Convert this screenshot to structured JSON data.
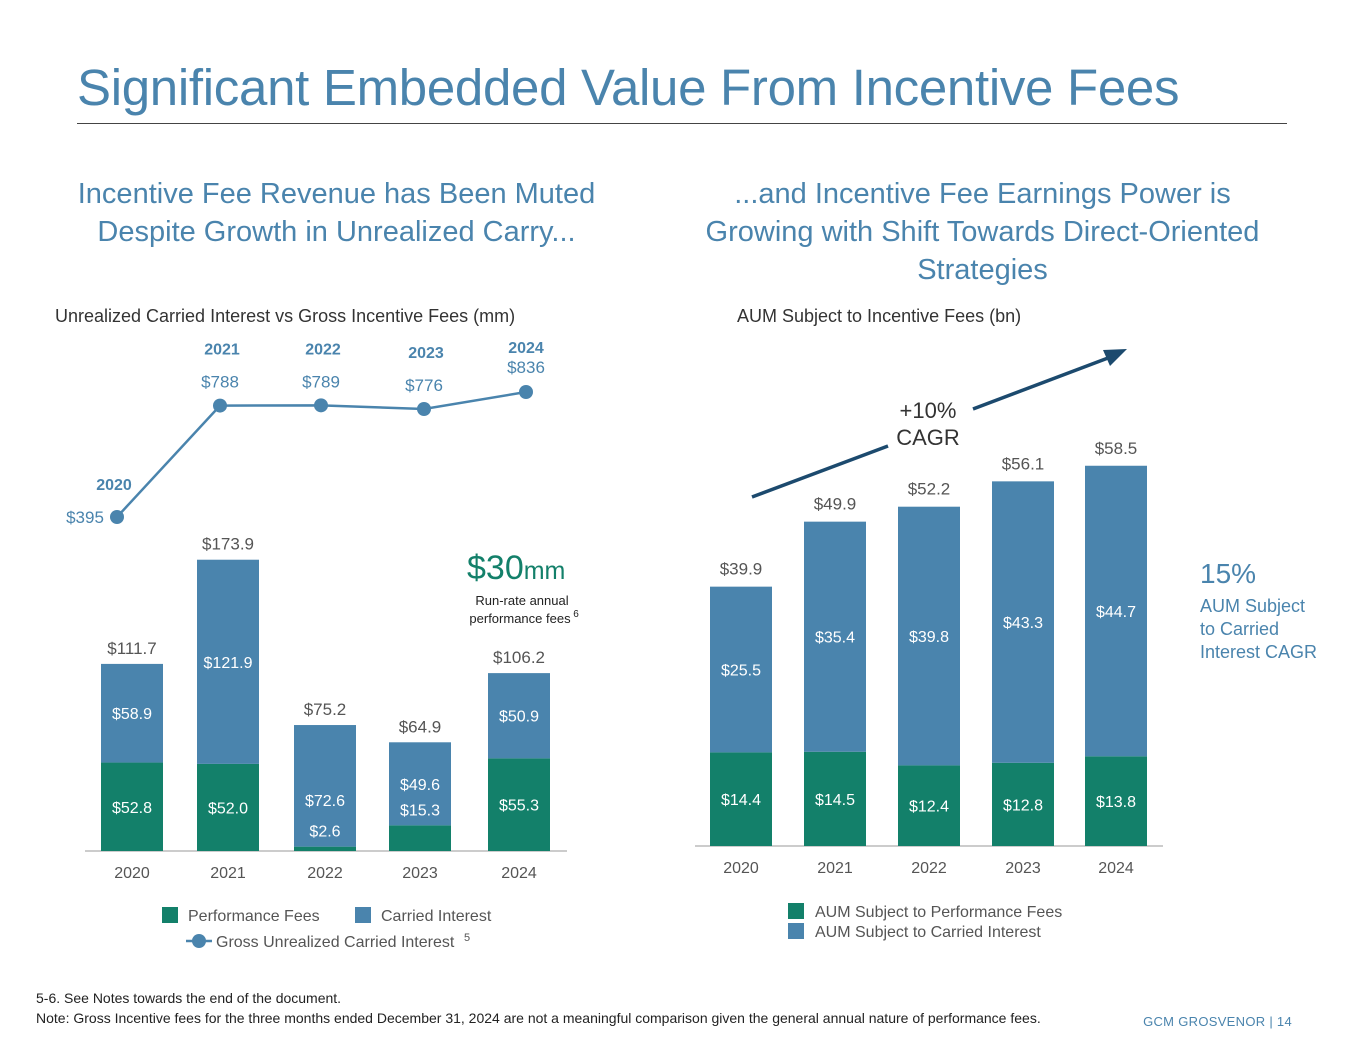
{
  "page": {
    "title": "Significant Embedded Value From Incentive Fees",
    "left_subhead": "Incentive Fee Revenue has Been Muted Despite Growth in Unrealized Carry...",
    "right_subhead": "...and Incentive Fee Earnings Power is Growing with Shift Towards Direct-Oriented Strategies",
    "note1": "5-6. See Notes towards the end of the document.",
    "note2": "Note: Gross Incentive fees for the three months ended December 31, 2024 are not a meaningful comparison given the general annual nature of performance fees.",
    "footer": "GCM GROSVENOR | 14"
  },
  "colors": {
    "green": "#13806a",
    "blue": "#4a84ad",
    "dark_blue": "#1c4a6e",
    "title_blue": "#4a84ad",
    "text": "#555555"
  },
  "chart_data": [
    {
      "id": "left",
      "type": "bar",
      "stacked": true,
      "title": "Unrealized Carried Interest vs Gross Incentive Fees (mm)",
      "categories": [
        "2020",
        "2021",
        "2022",
        "2023",
        "2024"
      ],
      "series": [
        {
          "name": "Performance Fees",
          "values": [
            52.8,
            52.0,
            2.6,
            15.3,
            55.3
          ],
          "labels": [
            "$52.8",
            "$52.0",
            "$2.6",
            "$15.3",
            "$55.3"
          ]
        },
        {
          "name": "Carried Interest",
          "values": [
            58.9,
            121.9,
            72.6,
            49.6,
            50.9
          ],
          "labels": [
            "$58.9",
            "$121.9",
            "$72.6",
            "$49.6",
            "$50.9"
          ]
        }
      ],
      "totals": [
        "$111.7",
        "$173.9",
        "$75.2",
        "$64.9",
        "$106.2"
      ],
      "line": {
        "name": "Gross Unrealized Carried Interest",
        "legend_suffix": "5",
        "values": [
          395,
          788,
          789,
          776,
          836
        ],
        "labels": [
          "$395",
          "$788",
          "$789",
          "$776",
          "$836"
        ],
        "year_labels": [
          "2020",
          "2021",
          "2022",
          "2023",
          "2024"
        ]
      },
      "callout": {
        "amount": "$30",
        "unit": "mm",
        "line1": "Run-rate annual",
        "line2": "performance fees",
        "sup": "6"
      },
      "legend": [
        "Performance Fees",
        "Carried Interest",
        "Gross Unrealized Carried Interest"
      ]
    },
    {
      "id": "right",
      "type": "bar",
      "stacked": true,
      "title": "AUM Subject to Incentive Fees (bn)",
      "categories": [
        "2020",
        "2021",
        "2022",
        "2023",
        "2024"
      ],
      "series": [
        {
          "name": "AUM Subject to Performance Fees",
          "values": [
            14.4,
            14.5,
            12.4,
            12.8,
            13.8
          ],
          "labels": [
            "$14.4",
            "$14.5",
            "$12.4",
            "$12.8",
            "$13.8"
          ]
        },
        {
          "name": "AUM Subject to Carried Interest",
          "values": [
            25.5,
            35.4,
            39.8,
            43.3,
            44.7
          ],
          "labels": [
            "$25.5",
            "$35.4",
            "$39.8",
            "$43.3",
            "$44.7"
          ]
        }
      ],
      "totals": [
        "$39.9",
        "$49.9",
        "$52.2",
        "$56.1",
        "$58.5"
      ],
      "cagr": {
        "line1": "+10%",
        "line2": "CAGR"
      },
      "side_callout": {
        "pct": "15%",
        "lines": [
          "AUM Subject",
          "to Carried",
          "Interest CAGR"
        ]
      },
      "legend": [
        "AUM Subject to Performance Fees",
        "AUM Subject to Carried Interest"
      ]
    }
  ]
}
